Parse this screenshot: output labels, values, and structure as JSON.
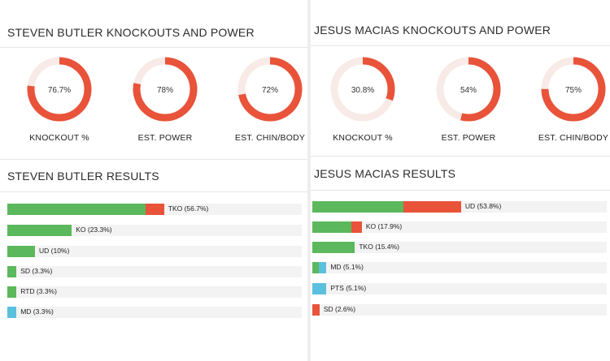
{
  "colors": {
    "win": "#5cb85c",
    "knockout": "#e8533a",
    "decision_blue": "#5bc0de",
    "track": "#f8ebe7"
  },
  "left": {
    "title": "STEVEN BUTLER KNOCKOUTS AND POWER",
    "results_title": "STEVEN BUTLER RESULTS",
    "gauges": [
      {
        "label": "KNOCKOUT %",
        "value": 76.7,
        "value_text": "76.7%"
      },
      {
        "label": "EST. POWER",
        "value": 78,
        "value_text": "78%"
      },
      {
        "label": "EST. CHIN/BODY",
        "value": 72,
        "value_text": "72%"
      }
    ],
    "results": [
      {
        "label": "TKO (56.7%)",
        "percent": 56.7,
        "green": 0.88,
        "red": 0.12,
        "blue": 0
      },
      {
        "label": "KO (23.3%)",
        "percent": 23.3,
        "green": 1,
        "red": 0,
        "blue": 0
      },
      {
        "label": "UD (10%)",
        "percent": 10,
        "green": 1,
        "red": 0,
        "blue": 0
      },
      {
        "label": "SD (3.3%)",
        "percent": 3.3,
        "green": 1,
        "red": 0,
        "blue": 0
      },
      {
        "label": "RTD (3.3%)",
        "percent": 3.3,
        "green": 1,
        "red": 0,
        "blue": 0
      },
      {
        "label": "MD (3.3%)",
        "percent": 3.3,
        "green": 0,
        "red": 0,
        "blue": 1
      }
    ]
  },
  "right": {
    "title": "JESUS MACIAS KNOCKOUTS AND POWER",
    "results_title": "JESUS MACIAS RESULTS",
    "gauges": [
      {
        "label": "KNOCKOUT %",
        "value": 30.8,
        "value_text": "30.8%"
      },
      {
        "label": "EST. POWER",
        "value": 54,
        "value_text": "54%"
      },
      {
        "label": "EST. CHIN/BODY",
        "value": 75,
        "value_text": "75%"
      }
    ],
    "results": [
      {
        "label": "UD (53.8%)",
        "percent": 53.8,
        "green": 0.61,
        "red": 0.39,
        "blue": 0
      },
      {
        "label": "KO (17.9%)",
        "percent": 17.9,
        "green": 0.79,
        "red": 0.21,
        "blue": 0
      },
      {
        "label": "TKO (15.4%)",
        "percent": 15.4,
        "green": 1,
        "red": 0,
        "blue": 0
      },
      {
        "label": "MD (5.1%)",
        "percent": 5.1,
        "green": 0.45,
        "red": 0,
        "blue": 0.55
      },
      {
        "label": "PTS (5.1%)",
        "percent": 5.1,
        "green": 0,
        "red": 0,
        "blue": 1
      },
      {
        "label": "SD (2.6%)",
        "percent": 2.6,
        "green": 0,
        "red": 1,
        "blue": 0
      }
    ]
  }
}
